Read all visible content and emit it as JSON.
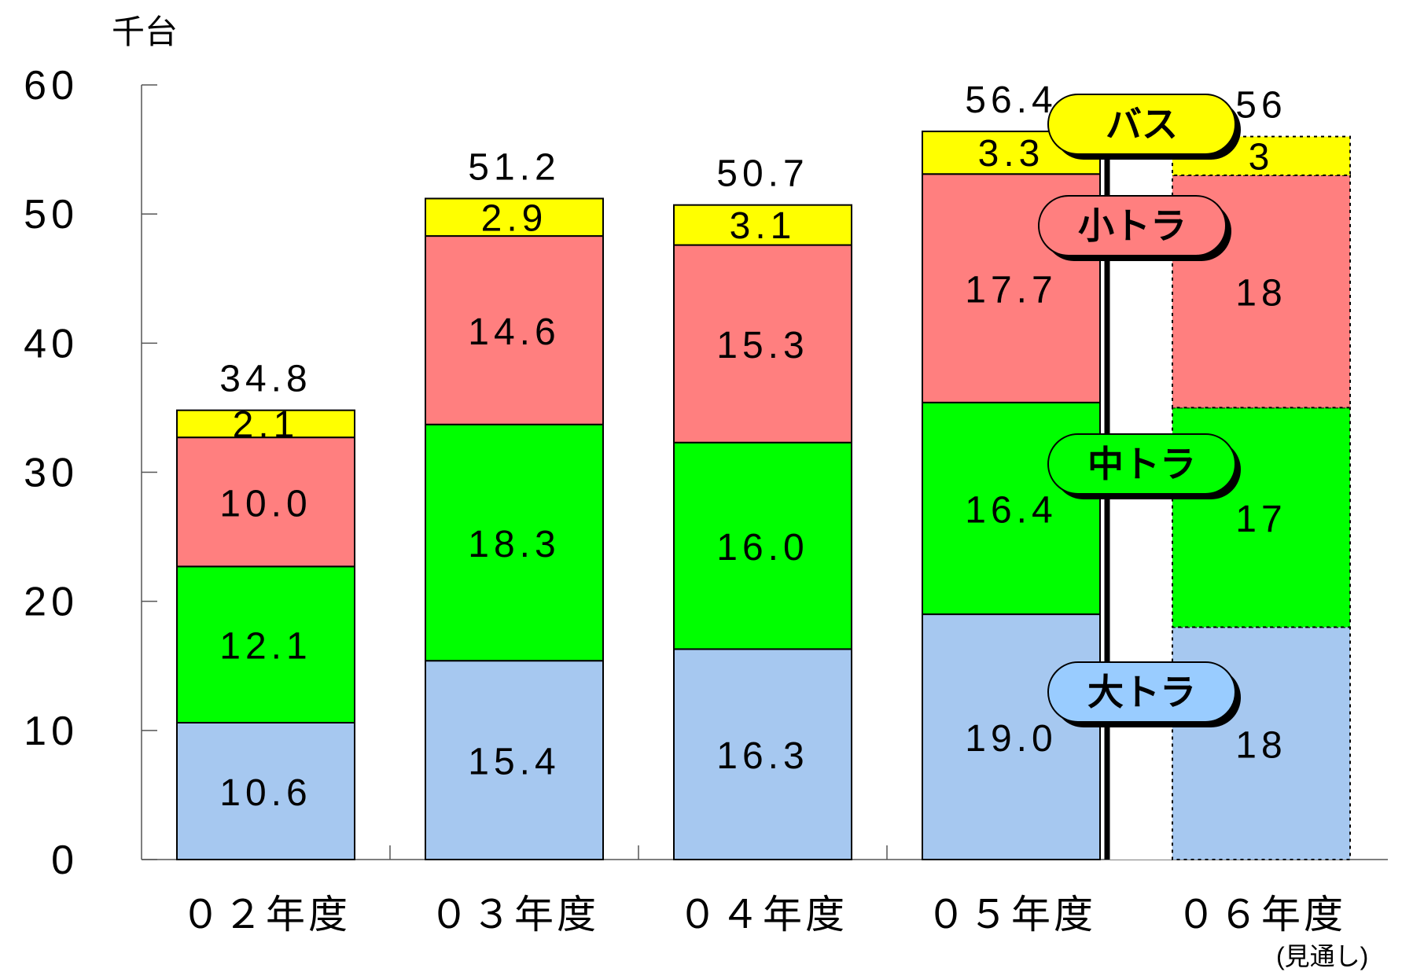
{
  "chart_data": {
    "type": "bar",
    "stacked": true,
    "unit": "千台",
    "ylim": [
      0,
      60
    ],
    "yticks": [
      "0",
      "10",
      "20",
      "30",
      "40",
      "50",
      "60"
    ],
    "categories": [
      "０２年度",
      "０３年度",
      "０４年度",
      "０５年度",
      "０６年度"
    ],
    "category_note": "(見通し)",
    "series": [
      {
        "name": "大トラ",
        "color": "#a6c8f0",
        "labels": [
          "10.6",
          "15.4",
          "16.3",
          "19.0",
          "18"
        ],
        "values": [
          10.6,
          15.4,
          16.3,
          19.0,
          18
        ]
      },
      {
        "name": "中トラ",
        "color": "#00ff00",
        "labels": [
          "12.1",
          "18.3",
          "16.0",
          "16.4",
          "17"
        ],
        "values": [
          12.1,
          18.3,
          16.0,
          16.4,
          17
        ]
      },
      {
        "name": "小トラ",
        "color": "#ff7f7f",
        "labels": [
          "10.0",
          "14.6",
          "15.3",
          "17.7",
          "18"
        ],
        "values": [
          10.0,
          14.6,
          15.3,
          17.7,
          18
        ]
      },
      {
        "name": "バス",
        "color": "#ffff00",
        "labels": [
          "2.1",
          "2.9",
          "3.1",
          "3.3",
          "3"
        ],
        "values": [
          2.1,
          2.9,
          3.1,
          3.3,
          3
        ]
      }
    ],
    "totals": [
      "34.8",
      "51.2",
      "50.7",
      "56.4",
      "56"
    ],
    "forecast_index": 4,
    "legend": [
      {
        "text": "バス",
        "color": "#ffff00"
      },
      {
        "text": "小トラ",
        "color": "#ff7f7f"
      },
      {
        "text": "中トラ",
        "color": "#00ff00"
      },
      {
        "text": "大トラ",
        "color": "#99ccff"
      }
    ]
  }
}
